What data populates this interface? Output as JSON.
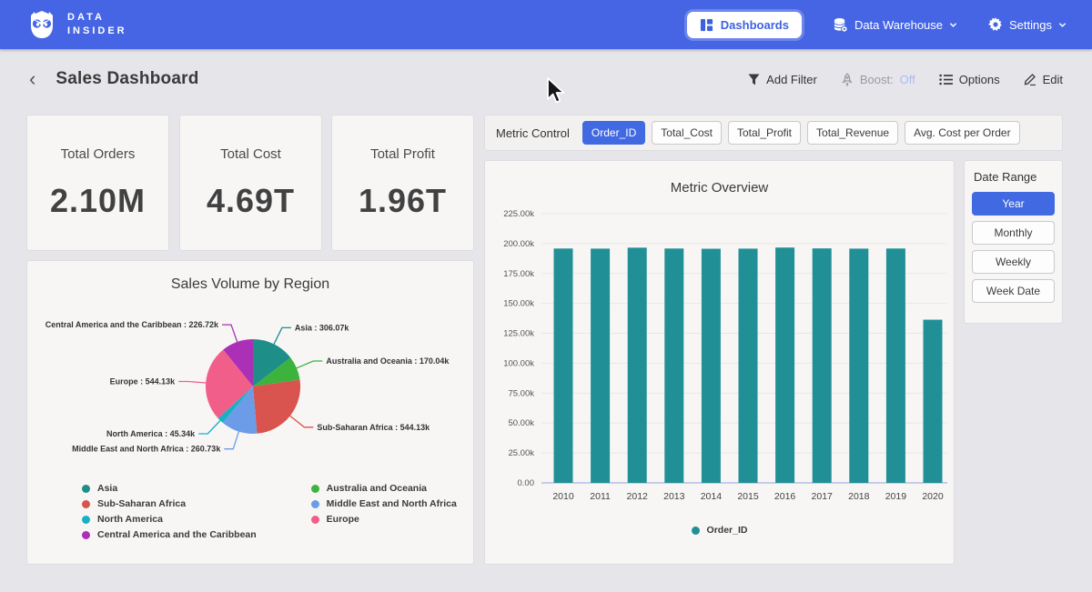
{
  "navbar": {
    "brand_line1": "DATA",
    "brand_line2": "INSIDER",
    "dashboards_label": "Dashboards",
    "data_warehouse_label": "Data Warehouse",
    "settings_label": "Settings"
  },
  "header": {
    "title": "Sales Dashboard",
    "add_filter_label": "Add Filter",
    "boost_label": "Boost:",
    "boost_state": "Off",
    "options_label": "Options",
    "edit_label": "Edit"
  },
  "kpis": [
    {
      "label": "Total Orders",
      "value": "2.10M"
    },
    {
      "label": "Total Cost",
      "value": "4.69T"
    },
    {
      "label": "Total Profit",
      "value": "1.96T"
    }
  ],
  "metric_control": {
    "label": "Metric Control",
    "options": [
      {
        "label": "Order_ID",
        "selected": true
      },
      {
        "label": "Total_Cost",
        "selected": false
      },
      {
        "label": "Total_Profit",
        "selected": false
      },
      {
        "label": "Total_Revenue",
        "selected": false
      },
      {
        "label": "Avg. Cost per Order",
        "selected": false
      }
    ]
  },
  "date_range": {
    "label": "Date Range",
    "options": [
      {
        "label": "Year",
        "selected": true
      },
      {
        "label": "Monthly",
        "selected": false
      },
      {
        "label": "Weekly",
        "selected": false
      },
      {
        "label": "Week Date",
        "selected": false
      }
    ]
  },
  "colors": {
    "navbar_blue": "#4565e4",
    "accent_blue": "#4169e1",
    "boost_off_blue": "#a9bdf2",
    "page_bg": "#e6e5ea",
    "card_bg": "#f7f6f5"
  },
  "chart_data": [
    {
      "type": "pie",
      "title": "Sales Volume by Region",
      "unit": "k",
      "slices": [
        {
          "name": "Asia",
          "value": 306.07,
          "label": "Asia : 306.07k",
          "color": "#1e8e89"
        },
        {
          "name": "Australia and Oceania",
          "value": 170.04,
          "label": "Australia and Oceania : 170.04k",
          "color": "#3cb33c"
        },
        {
          "name": "Sub-Saharan Africa",
          "value": 544.13,
          "label": "Sub-Saharan Africa : 544.13k",
          "color": "#d9534f"
        },
        {
          "name": "Middle East and North Africa",
          "value": 260.73,
          "label": "Middle East and North Africa : 260.73k",
          "color": "#6c9ce8"
        },
        {
          "name": "North America",
          "value": 45.34,
          "label": "North America : 45.34k",
          "color": "#17b0c4"
        },
        {
          "name": "Europe",
          "value": 544.13,
          "label": "Europe : 544.13k",
          "color": "#f25e8a"
        },
        {
          "name": "Central America and the Caribbean",
          "value": 226.72,
          "label": "Central America and the Caribbean : 226.72k",
          "color": "#ab30b5"
        }
      ],
      "legend_columns": [
        [
          "Asia",
          "Sub-Saharan Africa",
          "North America",
          "Central America and the Caribbean"
        ],
        [
          "Australia and Oceania",
          "Middle East and North Africa",
          "Europe"
        ]
      ],
      "legend_position": "bottom"
    },
    {
      "type": "bar",
      "title": "Metric Overview",
      "categories": [
        "2010",
        "2011",
        "2012",
        "2013",
        "2014",
        "2015",
        "2016",
        "2017",
        "2018",
        "2019",
        "2020"
      ],
      "series": [
        {
          "name": "Order_ID",
          "color": "#218f96",
          "values": [
            195.9,
            195.8,
            196.6,
            195.9,
            195.7,
            195.8,
            196.7,
            196.0,
            195.8,
            195.9,
            136.4
          ]
        }
      ],
      "unit": "k",
      "ylim": [
        0,
        225
      ],
      "y_ticks": [
        "225.00k",
        "200.00k",
        "175.00k",
        "150.00k",
        "125.00k",
        "100.00k",
        "75.00k",
        "50.00k",
        "25.00k",
        "0.00"
      ],
      "grid": true,
      "legend_position": "bottom"
    }
  ]
}
